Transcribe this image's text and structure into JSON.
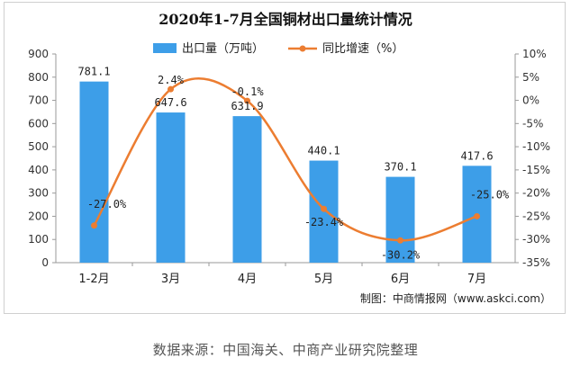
{
  "chart_data": {
    "type": "bar+line",
    "title": "2020年1-7月全国铜材出口量统计情况",
    "categories": [
      "1-2月",
      "3月",
      "4月",
      "5月",
      "6月",
      "7月"
    ],
    "series": [
      {
        "name": "出口量（万吨）",
        "type": "bar",
        "axis": "left",
        "color": "#3d9ee8",
        "values": [
          781.1,
          647.6,
          631.9,
          440.1,
          370.1,
          417.6
        ],
        "labels": [
          "781.1",
          "647.6",
          "631.9",
          "440.1",
          "370.1",
          "417.6"
        ]
      },
      {
        "name": "同比增速（%）",
        "type": "line",
        "axis": "right",
        "color": "#ec7d31",
        "values": [
          -27.0,
          2.4,
          -0.1,
          -23.4,
          -30.2,
          -25.0
        ],
        "labels": [
          "-27.0%",
          "2.4%",
          "-0.1%",
          "-23.4%",
          "-30.2%",
          "-25.0%"
        ]
      }
    ],
    "y_left": {
      "min": 0,
      "max": 900,
      "step": 100,
      "ticks": [
        "0",
        "100",
        "200",
        "300",
        "400",
        "500",
        "600",
        "700",
        "800",
        "900"
      ]
    },
    "y_right": {
      "min": -35,
      "max": 10,
      "step": 5,
      "ticks": [
        "-35%",
        "-30%",
        "-25%",
        "-20%",
        "-15%",
        "-10%",
        "-5%",
        "0%",
        "5%",
        "10%"
      ]
    },
    "legend_position": "top",
    "grid": false
  },
  "credit": "制图：中商情报网（www.askci.com）",
  "source": "数据来源：中国海关、中商产业研究院整理"
}
